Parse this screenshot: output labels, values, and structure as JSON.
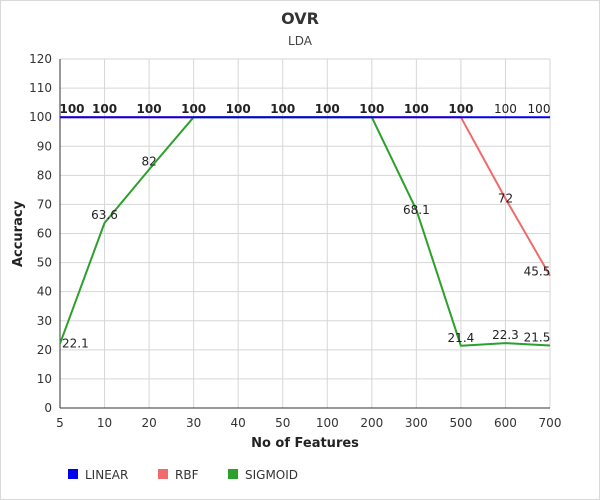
{
  "chart_data": {
    "type": "line",
    "title": "OVR",
    "subtitle": "LDA",
    "xlabel": "No of Features",
    "ylabel": "Accuracy",
    "categories": [
      "5",
      "10",
      "20",
      "30",
      "40",
      "50",
      "100",
      "200",
      "300",
      "500",
      "600",
      "700"
    ],
    "ylim": [
      0,
      120
    ],
    "yticks": [
      0,
      10,
      20,
      30,
      40,
      50,
      60,
      70,
      80,
      90,
      100,
      110,
      120
    ],
    "grid": true,
    "legend_position": "bottom-left",
    "series": [
      {
        "name": "LINEAR",
        "color": "#0000ee",
        "values": [
          100,
          100,
          100,
          100,
          100,
          100,
          100,
          100,
          100,
          100,
          100,
          100
        ],
        "labels": [
          "100",
          "100",
          "100",
          "100",
          "100",
          "100",
          "100",
          "100",
          "100",
          "100",
          "100",
          "100"
        ]
      },
      {
        "name": "RBF",
        "color": "#f06b6b",
        "values": [
          100,
          100,
          100,
          100,
          100,
          100,
          100,
          100,
          100,
          100,
          72,
          45.5
        ],
        "labels": [
          "",
          "",
          "",
          "",
          "",
          "",
          "",
          "",
          "",
          "",
          "72",
          "45.5"
        ]
      },
      {
        "name": "SIGMOID",
        "color": "#2ca02c",
        "values": [
          22.1,
          63.6,
          82,
          100,
          100,
          100,
          100,
          100,
          68.1,
          21.4,
          22.3,
          21.5
        ],
        "labels": [
          "22.1",
          "63.6",
          "82",
          "",
          "",
          "",
          "",
          "",
          "68.1",
          "21.4",
          "22.3",
          "21.5"
        ]
      }
    ]
  }
}
